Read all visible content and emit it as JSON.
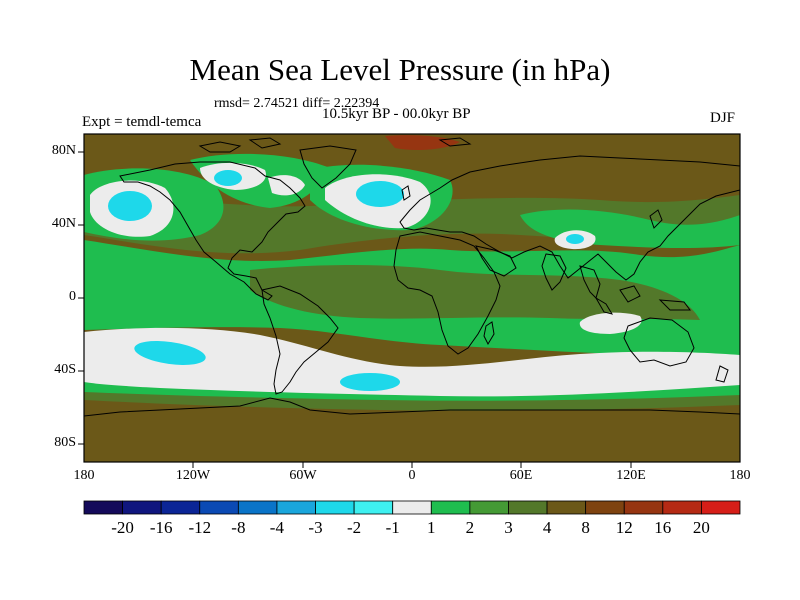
{
  "title": "Mean Sea Level Pressure (in hPa)",
  "stats": "rmsd= 2.74521 diff= 2.22394",
  "period": "10.5kyr BP - 00.0kyr BP",
  "experiment": "Expt = temdl-temca",
  "season": "DJF",
  "axes": {
    "lat_labels": [
      "80N",
      "40N",
      "0",
      "40S",
      "80S"
    ],
    "lon_labels": [
      "180",
      "120W",
      "60W",
      "0",
      "60E",
      "120E",
      "180"
    ]
  },
  "colorbar": {
    "labels": [
      "-20",
      "-16",
      "-12",
      "-8",
      "-4",
      "-3",
      "-2",
      "-1",
      "1",
      "2",
      "3",
      "4",
      "8",
      "12",
      "16",
      "20"
    ],
    "colors": [
      "#140a5a",
      "#10167e",
      "#0b2596",
      "#0b4ab4",
      "#0a74c8",
      "#1aa6dc",
      "#1ed8ea",
      "#3ef0f0",
      "#ececec",
      "#1fbd4f",
      "#449a35",
      "#53782a",
      "#6b5818",
      "#7e4310",
      "#963511",
      "#b52a14",
      "#d61e18"
    ]
  },
  "map_colors": {
    "land_brown": "#6b5818",
    "dark_olive": "#53782a",
    "olive": "#449a35",
    "green": "#1fbd4f",
    "white": "#ececec",
    "cyan": "#1ed8ea",
    "red_brown": "#963511",
    "coast": "#000000"
  }
}
